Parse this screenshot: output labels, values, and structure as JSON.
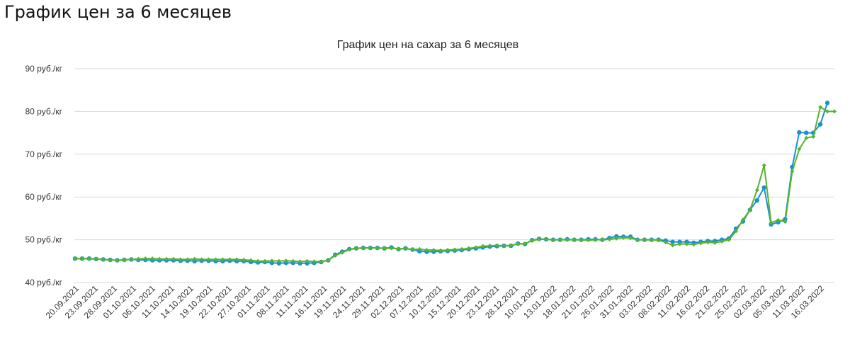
{
  "page": {
    "heading": "График цен за 6 месяцев"
  },
  "colors": {
    "series_1": "#1a8fd6",
    "series_2": "#55b52a",
    "grid": "#d9d9d9"
  },
  "chart_data": {
    "type": "line",
    "title": "График цен на сахар за 6 месяцев",
    "xlabel": "",
    "ylabel": "",
    "y_unit": "руб./кг",
    "ylim": [
      40,
      90
    ],
    "y_ticks": [
      40,
      50,
      60,
      70,
      80,
      90
    ],
    "y_tick_labels": [
      "40 руб./кг",
      "50 руб./кг",
      "60 руб./кг",
      "70 руб./кг",
      "80 руб./кг",
      "90 руб./кг"
    ],
    "grid": true,
    "legend": "none",
    "x_tick_labels": [
      "20.09.2021",
      "23.09.2021",
      "28.09.2021",
      "01.10.2021",
      "06.10.2021",
      "11.10.2021",
      "14.10.2021",
      "19.10.2021",
      "22.10.2021",
      "27.10.2021",
      "01.11.2021",
      "08.11.2021",
      "11.11.2021",
      "16.11.2021",
      "19.11.2021",
      "24.11.2021",
      "29.11.2021",
      "02.12.2021",
      "07.12.2021",
      "10.12.2021",
      "15.12.2021",
      "20.12.2021",
      "23.12.2021",
      "28.12.2021",
      "10.01.2022",
      "13.01.2022",
      "18.01.2022",
      "21.01.2022",
      "26.01.2022",
      "31.01.2022",
      "03.02.2022",
      "08.02.2022",
      "11.02.2022",
      "16.02.2022",
      "21.02.2022",
      "25.02.2022",
      "02.03.2022",
      "05.03.2022",
      "11.03.2022",
      "16.03.2022"
    ],
    "series": [
      {
        "values": [
          45.6,
          45.6,
          45.6,
          45.5,
          45.4,
          45.3,
          45.2,
          45.3,
          45.4,
          45.3,
          45.3,
          45.2,
          45.2,
          45.2,
          45.2,
          45.1,
          45.1,
          45.0,
          45.1,
          45.1,
          45.0,
          45.0,
          45.1,
          45.0,
          45.0,
          44.8,
          44.7,
          44.8,
          44.6,
          44.5,
          44.6,
          44.6,
          44.5,
          44.5,
          44.6,
          44.8,
          45.2,
          46.5,
          47.2,
          47.8,
          48.0,
          48.1,
          48.1,
          48.1,
          48.0,
          48.2,
          47.8,
          48.0,
          47.7,
          47.3,
          47.2,
          47.2,
          47.3,
          47.4,
          47.5,
          47.6,
          47.8,
          48.0,
          48.2,
          48.4,
          48.5,
          48.6,
          48.6,
          49.1,
          49.0,
          49.9,
          50.2,
          50.1,
          50.0,
          50.0,
          50.1,
          50.0,
          50.0,
          50.1,
          50.1,
          50.0,
          50.4,
          50.8,
          50.7,
          50.7,
          50.0,
          50.0,
          50.0,
          50.0,
          49.8,
          49.5,
          49.5,
          49.5,
          49.3,
          49.5,
          49.7,
          49.7,
          50.0,
          50.3,
          52.6,
          54.3,
          57.0,
          59.2,
          62.2,
          53.6,
          54.1,
          54.8,
          67.0,
          75.1,
          75.0,
          75.0,
          77.0,
          82.0
        ]
      },
      {
        "values": [
          45.6,
          45.6,
          45.5,
          45.5,
          45.4,
          45.3,
          45.2,
          45.3,
          45.4,
          45.5,
          45.6,
          45.6,
          45.5,
          45.5,
          45.5,
          45.4,
          45.4,
          45.5,
          45.4,
          45.4,
          45.4,
          45.4,
          45.4,
          45.4,
          45.3,
          45.2,
          45.0,
          45.0,
          45.1,
          45.0,
          45.1,
          45.0,
          44.9,
          45.0,
          44.9,
          44.9,
          45.2,
          46.3,
          47.0,
          47.7,
          48.0,
          48.1,
          48.1,
          48.1,
          48.0,
          48.0,
          47.9,
          47.9,
          47.7,
          47.8,
          47.6,
          47.6,
          47.5,
          47.6,
          47.7,
          47.8,
          48.0,
          48.2,
          48.5,
          48.6,
          48.7,
          48.6,
          48.7,
          49.0,
          49.1,
          49.8,
          50.1,
          50.1,
          50.0,
          50.0,
          50.0,
          50.0,
          50.0,
          49.9,
          50.0,
          50.0,
          50.1,
          50.3,
          50.5,
          50.4,
          50.0,
          50.0,
          50.0,
          49.9,
          49.4,
          48.7,
          49.0,
          49.0,
          48.9,
          49.2,
          49.4,
          49.3,
          49.6,
          50.0,
          52.0,
          54.7,
          57.0,
          61.6,
          67.4,
          54.0,
          54.6,
          54.2,
          66.0,
          71.2,
          73.8,
          74.1,
          81.0,
          80.0,
          80.0
        ]
      }
    ]
  }
}
